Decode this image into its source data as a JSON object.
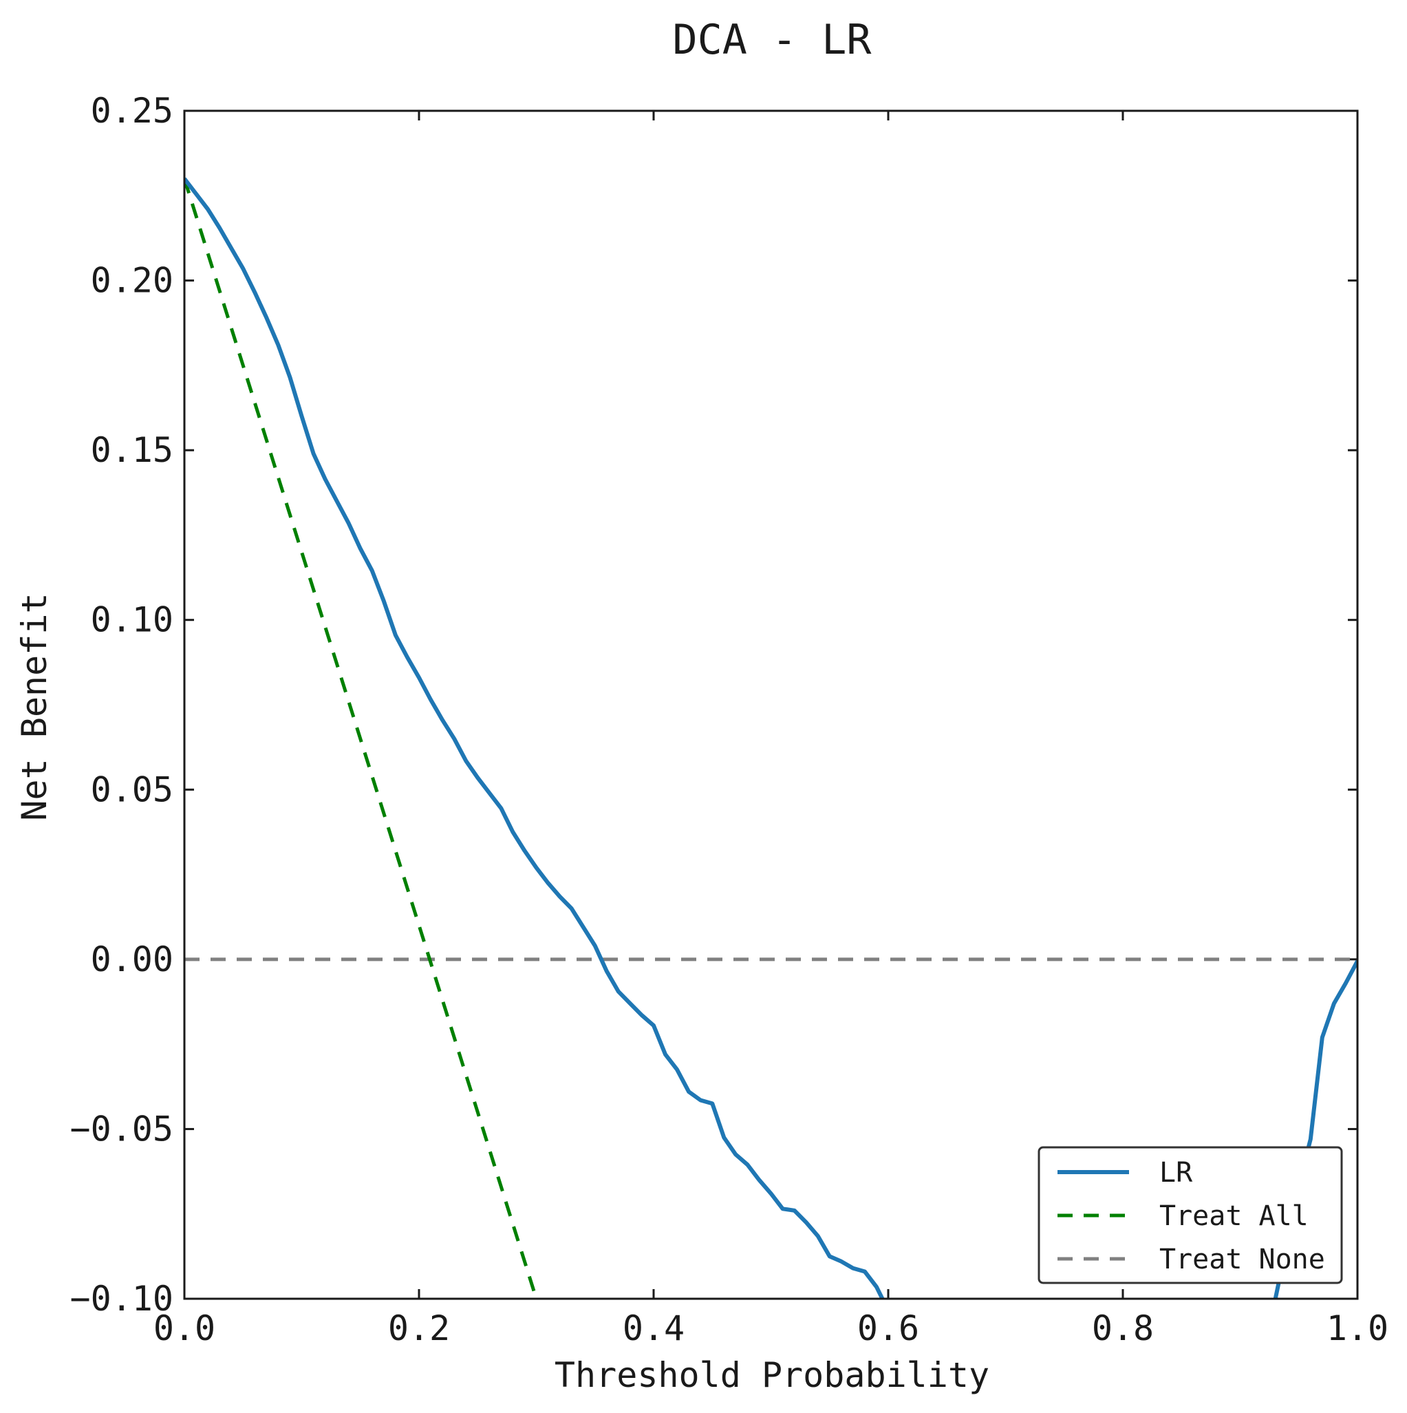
{
  "chart_data": {
    "type": "line",
    "title": "DCA - LR",
    "xlabel": "Threshold Probability",
    "ylabel": "Net Benefit",
    "xlim": [
      0.0,
      1.0
    ],
    "ylim": [
      -0.1,
      0.25
    ],
    "grid": false,
    "legend_position": "lower right",
    "xticks": [
      "0.0",
      "0.2",
      "0.4",
      "0.6",
      "0.8",
      "1.0"
    ],
    "yticks": [
      "0.25",
      "0.20",
      "0.15",
      "0.10",
      "0.05",
      "0.00",
      "−0.05",
      "−0.10"
    ],
    "series": [
      {
        "name": "LR",
        "style": "solid",
        "color": "#1f77b4",
        "points": [
          [
            0.0,
            0.23
          ],
          [
            0.01,
            0.2255
          ],
          [
            0.02,
            0.221
          ],
          [
            0.03,
            0.2155
          ],
          [
            0.04,
            0.2095
          ],
          [
            0.05,
            0.2035
          ],
          [
            0.06,
            0.1965
          ],
          [
            0.07,
            0.189
          ],
          [
            0.08,
            0.181
          ],
          [
            0.09,
            0.1715
          ],
          [
            0.1,
            0.16
          ],
          [
            0.11,
            0.149
          ],
          [
            0.12,
            0.1415
          ],
          [
            0.13,
            0.135
          ],
          [
            0.14,
            0.1285
          ],
          [
            0.15,
            0.121
          ],
          [
            0.16,
            0.1145
          ],
          [
            0.17,
            0.1055
          ],
          [
            0.18,
            0.0955
          ],
          [
            0.19,
            0.089
          ],
          [
            0.2,
            0.083
          ],
          [
            0.21,
            0.0765
          ],
          [
            0.22,
            0.0705
          ],
          [
            0.23,
            0.065
          ],
          [
            0.24,
            0.0585
          ],
          [
            0.25,
            0.0535
          ],
          [
            0.26,
            0.049
          ],
          [
            0.27,
            0.0445
          ],
          [
            0.28,
            0.0375
          ],
          [
            0.29,
            0.032
          ],
          [
            0.3,
            0.027
          ],
          [
            0.31,
            0.0225
          ],
          [
            0.32,
            0.0185
          ],
          [
            0.33,
            0.015
          ],
          [
            0.34,
            0.0095
          ],
          [
            0.35,
            0.004
          ],
          [
            0.36,
            -0.0035
          ],
          [
            0.37,
            -0.0095
          ],
          [
            0.38,
            -0.013
          ],
          [
            0.39,
            -0.0165
          ],
          [
            0.4,
            -0.0195
          ],
          [
            0.41,
            -0.028
          ],
          [
            0.42,
            -0.0325
          ],
          [
            0.43,
            -0.039
          ],
          [
            0.44,
            -0.0415
          ],
          [
            0.45,
            -0.0425
          ],
          [
            0.46,
            -0.0525
          ],
          [
            0.47,
            -0.0575
          ],
          [
            0.48,
            -0.0605
          ],
          [
            0.49,
            -0.065
          ],
          [
            0.5,
            -0.069
          ],
          [
            0.51,
            -0.0735
          ],
          [
            0.52,
            -0.074
          ],
          [
            0.53,
            -0.0775
          ],
          [
            0.54,
            -0.0815
          ],
          [
            0.55,
            -0.0875
          ],
          [
            0.56,
            -0.089
          ],
          [
            0.57,
            -0.091
          ],
          [
            0.58,
            -0.092
          ],
          [
            0.59,
            -0.0965
          ],
          [
            0.595,
            -0.1
          ]
        ]
      },
      {
        "name": "LR",
        "style": "solid",
        "color": "#1f77b4",
        "points": [
          [
            0.93,
            -0.1
          ],
          [
            0.94,
            -0.0835
          ],
          [
            0.95,
            -0.0665
          ],
          [
            0.96,
            -0.053
          ],
          [
            0.97,
            -0.023
          ],
          [
            0.98,
            -0.013
          ],
          [
            0.99,
            -0.007
          ],
          [
            1.0,
            -0.0005
          ]
        ]
      },
      {
        "name": "Treat All",
        "style": "dashed",
        "color": "#008000",
        "points": [
          [
            0.0,
            0.23
          ],
          [
            0.3,
            -0.1
          ]
        ]
      },
      {
        "name": "Treat None",
        "style": "dashed",
        "color": "#808080",
        "points": [
          [
            0.0,
            0.0
          ],
          [
            1.0,
            0.0
          ]
        ]
      }
    ],
    "legend": [
      {
        "label": "LR",
        "style": "solid",
        "color": "#1f77b4"
      },
      {
        "label": "Treat All",
        "style": "dashed",
        "color": "#008000"
      },
      {
        "label": "Treat None",
        "style": "dashed",
        "color": "#808080"
      }
    ]
  }
}
